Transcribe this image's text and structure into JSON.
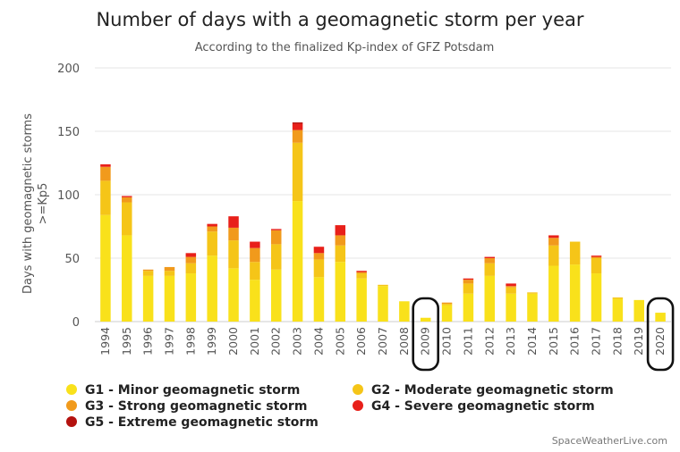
{
  "chart_data": {
    "type": "bar",
    "stacked": true,
    "title": "Number of days with a geomagnetic storm per year",
    "subtitle": "According to the finalized Kp-index of GFZ Potsdam",
    "ylabel_line1": "Days with geomagnetic storms",
    "ylabel_line2": ">=Kp5",
    "ylim": [
      0,
      200
    ],
    "yticks": [
      0,
      50,
      100,
      150,
      200
    ],
    "grid": true,
    "legend_position": "bottom",
    "categories": [
      "1994",
      "1995",
      "1996",
      "1997",
      "1998",
      "1999",
      "2000",
      "2001",
      "2002",
      "2003",
      "2004",
      "2005",
      "2006",
      "2007",
      "2008",
      "2009",
      "2010",
      "2011",
      "2012",
      "2013",
      "2014",
      "2015",
      "2016",
      "2017",
      "2018",
      "2019",
      "2020"
    ],
    "highlighted": [
      "2009",
      "2020"
    ],
    "series": [
      {
        "name": "G1 - Minor geomagnetic storm",
        "color": "#f9e11b",
        "values": [
          84,
          68,
          36,
          36,
          38,
          52,
          42,
          33,
          41,
          95,
          35,
          47,
          34,
          28,
          16,
          3,
          13,
          22,
          36,
          22,
          22,
          44,
          45,
          38,
          18,
          17,
          7
        ]
      },
      {
        "name": "G2 - Moderate geomagnetic storm",
        "color": "#f5c518",
        "values": [
          27,
          26,
          4,
          4,
          8,
          19,
          22,
          14,
          20,
          46,
          14,
          13,
          4,
          1,
          0,
          0,
          1,
          8,
          10,
          5,
          1,
          16,
          18,
          12,
          1,
          0,
          0
        ]
      },
      {
        "name": "G3 - Strong geomagnetic storm",
        "color": "#f19a1c",
        "values": [
          11,
          4,
          1,
          3,
          5,
          4,
          10,
          11,
          11,
          10,
          5,
          8,
          1,
          0,
          0,
          0,
          1,
          3,
          4,
          1,
          0,
          6,
          0,
          1,
          0,
          0,
          0
        ]
      },
      {
        "name": "G4 - Severe geomagnetic storm",
        "color": "#e8201a",
        "values": [
          2,
          1,
          0,
          0,
          3,
          2,
          9,
          5,
          1,
          5,
          5,
          8,
          1,
          0,
          0,
          0,
          0,
          1,
          1,
          2,
          0,
          2,
          0,
          1,
          0,
          0,
          0
        ]
      },
      {
        "name": "G5 - Extreme geomagnetic storm",
        "color": "#b4120f",
        "values": [
          0,
          0,
          0,
          0,
          0,
          0,
          0,
          0,
          0,
          1,
          0,
          0,
          0,
          0,
          0,
          0,
          0,
          0,
          0,
          0,
          0,
          0,
          0,
          0,
          0,
          0,
          0
        ]
      }
    ],
    "credit": "SpaceWeatherLive.com"
  }
}
